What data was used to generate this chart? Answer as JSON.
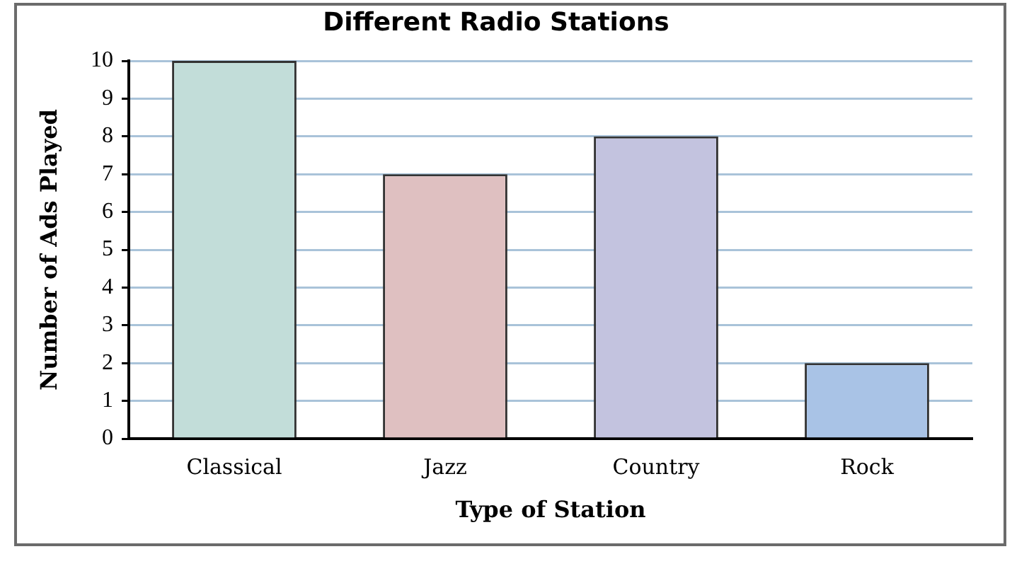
{
  "chart_data": {
    "type": "bar",
    "title": "Different Radio Stations",
    "xlabel": "Type of Station",
    "ylabel": "Number of Ads Played",
    "categories": [
      "Classical",
      "Jazz",
      "Country",
      "Rock"
    ],
    "values": [
      10,
      7,
      8,
      2
    ],
    "colors": [
      "#c2ddd9",
      "#dfc0c1",
      "#c3c3df",
      "#a9c3e6"
    ],
    "ylim": [
      0,
      10
    ],
    "yticks": [
      0,
      1,
      2,
      3,
      4,
      5,
      6,
      7,
      8,
      9,
      10
    ],
    "grid": "y"
  }
}
